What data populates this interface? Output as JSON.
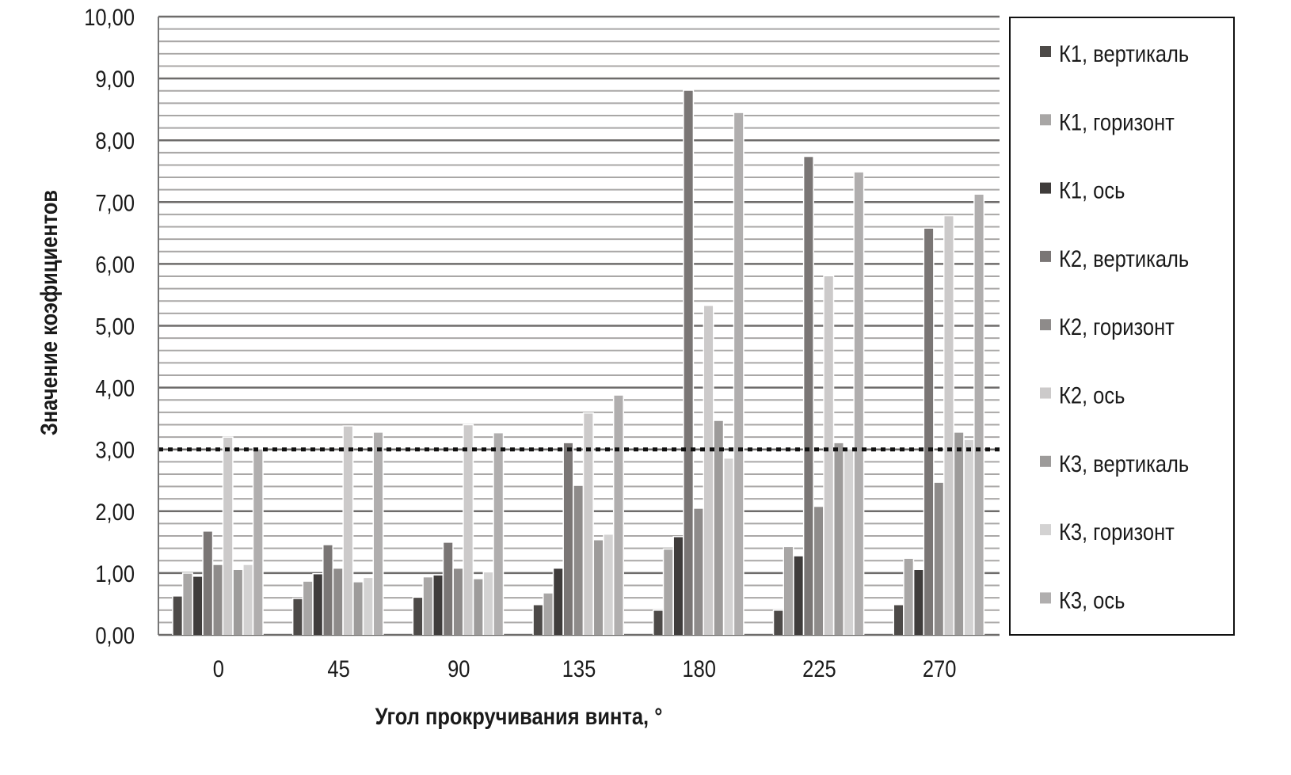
{
  "chart_data": {
    "type": "bar",
    "title": "",
    "xlabel": "Угол прокручивания винта, °",
    "ylabel": "Значение коэфициентов",
    "ylim": [
      0,
      10
    ],
    "y_ticks": [
      "0,00",
      "1,00",
      "2,00",
      "3,00",
      "4,00",
      "5,00",
      "6,00",
      "7,00",
      "8,00",
      "9,00",
      "10,00"
    ],
    "grid": "horizontal, major every 1,00 and minor every 0,20",
    "legend_position": "right",
    "reference_line": {
      "value": 3.0,
      "style": "dotted",
      "color": "#111111"
    },
    "categories": [
      "0",
      "45",
      "90",
      "135",
      "180",
      "225",
      "270"
    ],
    "series": [
      {
        "name": "К1, вертикаль",
        "color": "#4d4a48",
        "values": [
          0.62,
          0.58,
          0.6,
          0.48,
          0.39,
          0.39,
          0.48
        ]
      },
      {
        "name": "К1, горизонт",
        "color": "#a8a6a5",
        "values": [
          0.99,
          0.86,
          0.93,
          0.67,
          1.38,
          1.42,
          1.23
        ]
      },
      {
        "name": "К1, ось",
        "color": "#3f3c3b",
        "values": [
          0.94,
          0.98,
          0.96,
          1.07,
          1.58,
          1.27,
          1.05
        ]
      },
      {
        "name": "К2, вертикаль",
        "color": "#7a7675",
        "values": [
          1.67,
          1.45,
          1.49,
          3.1,
          8.8,
          7.73,
          6.57
        ]
      },
      {
        "name": "К2, горизонт",
        "color": "#8e8b8a",
        "values": [
          1.13,
          1.07,
          1.07,
          2.41,
          2.04,
          2.07,
          2.46
        ]
      },
      {
        "name": "К2, ось",
        "color": "#cccaca",
        "values": [
          3.19,
          3.37,
          3.39,
          3.58,
          5.32,
          5.8,
          6.77
        ]
      },
      {
        "name": "К3, вертикаль",
        "color": "#9d9b9a",
        "values": [
          1.05,
          0.85,
          0.9,
          1.53,
          3.46,
          3.1,
          3.27
        ]
      },
      {
        "name": "К3, горизонт",
        "color": "#d3d2d2",
        "values": [
          1.13,
          0.92,
          1.01,
          1.62,
          2.85,
          3.0,
          3.15
        ]
      },
      {
        "name": "К3, ось",
        "color": "#b0aeae",
        "values": [
          3.0,
          3.27,
          3.26,
          3.87,
          8.44,
          7.48,
          7.12
        ]
      }
    ]
  }
}
